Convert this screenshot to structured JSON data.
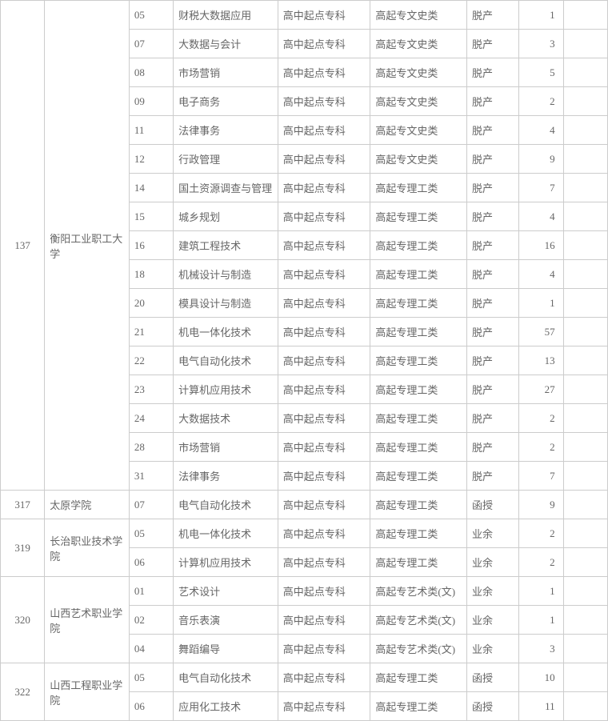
{
  "table": {
    "groups": [
      {
        "id": "137",
        "school": "衡阳工业职工大学",
        "rowspan": 17,
        "rows": [
          {
            "code": "05",
            "major": "财税大数据应用",
            "level": "高中起点专科",
            "category": "高起专文史类",
            "mode": "脱产",
            "num": "1"
          },
          {
            "code": "07",
            "major": "大数据与会计",
            "level": "高中起点专科",
            "category": "高起专文史类",
            "mode": "脱产",
            "num": "3"
          },
          {
            "code": "08",
            "major": "市场营销",
            "level": "高中起点专科",
            "category": "高起专文史类",
            "mode": "脱产",
            "num": "5"
          },
          {
            "code": "09",
            "major": "电子商务",
            "level": "高中起点专科",
            "category": "高起专文史类",
            "mode": "脱产",
            "num": "2"
          },
          {
            "code": "11",
            "major": "法律事务",
            "level": "高中起点专科",
            "category": "高起专文史类",
            "mode": "脱产",
            "num": "4"
          },
          {
            "code": "12",
            "major": "行政管理",
            "level": "高中起点专科",
            "category": "高起专文史类",
            "mode": "脱产",
            "num": "9"
          },
          {
            "code": "14",
            "major": "国土资源调查与管理",
            "level": "高中起点专科",
            "category": "高起专理工类",
            "mode": "脱产",
            "num": "7"
          },
          {
            "code": "15",
            "major": "城乡规划",
            "level": "高中起点专科",
            "category": "高起专理工类",
            "mode": "脱产",
            "num": "4"
          },
          {
            "code": "16",
            "major": "建筑工程技术",
            "level": "高中起点专科",
            "category": "高起专理工类",
            "mode": "脱产",
            "num": "16"
          },
          {
            "code": "18",
            "major": "机械设计与制造",
            "level": "高中起点专科",
            "category": "高起专理工类",
            "mode": "脱产",
            "num": "4"
          },
          {
            "code": "20",
            "major": "模具设计与制造",
            "level": "高中起点专科",
            "category": "高起专理工类",
            "mode": "脱产",
            "num": "1"
          },
          {
            "code": "21",
            "major": "机电一体化技术",
            "level": "高中起点专科",
            "category": "高起专理工类",
            "mode": "脱产",
            "num": "57"
          },
          {
            "code": "22",
            "major": "电气自动化技术",
            "level": "高中起点专科",
            "category": "高起专理工类",
            "mode": "脱产",
            "num": "13"
          },
          {
            "code": "23",
            "major": "计算机应用技术",
            "level": "高中起点专科",
            "category": "高起专理工类",
            "mode": "脱产",
            "num": "27"
          },
          {
            "code": "24",
            "major": "大数据技术",
            "level": "高中起点专科",
            "category": "高起专理工类",
            "mode": "脱产",
            "num": "2"
          },
          {
            "code": "28",
            "major": "市场营销",
            "level": "高中起点专科",
            "category": "高起专理工类",
            "mode": "脱产",
            "num": "2"
          },
          {
            "code": "31",
            "major": "法律事务",
            "level": "高中起点专科",
            "category": "高起专理工类",
            "mode": "脱产",
            "num": "7"
          }
        ]
      },
      {
        "id": "317",
        "school": "太原学院",
        "rowspan": 1,
        "rows": [
          {
            "code": "07",
            "major": "电气自动化技术",
            "level": "高中起点专科",
            "category": "高起专理工类",
            "mode": "函授",
            "num": "9"
          }
        ]
      },
      {
        "id": "319",
        "school": "长治职业技术学院",
        "rowspan": 2,
        "rows": [
          {
            "code": "05",
            "major": "机电一体化技术",
            "level": "高中起点专科",
            "category": "高起专理工类",
            "mode": "业余",
            "num": "2"
          },
          {
            "code": "06",
            "major": "计算机应用技术",
            "level": "高中起点专科",
            "category": "高起专理工类",
            "mode": "业余",
            "num": "2"
          }
        ]
      },
      {
        "id": "320",
        "school": "山西艺术职业学院",
        "rowspan": 3,
        "rows": [
          {
            "code": "01",
            "major": "艺术设计",
            "level": "高中起点专科",
            "category": "高起专艺术类(文)",
            "mode": "业余",
            "num": "1"
          },
          {
            "code": "02",
            "major": "音乐表演",
            "level": "高中起点专科",
            "category": "高起专艺术类(文)",
            "mode": "业余",
            "num": "1"
          },
          {
            "code": "04",
            "major": "舞蹈编导",
            "level": "高中起点专科",
            "category": "高起专艺术类(文)",
            "mode": "业余",
            "num": "3"
          }
        ]
      },
      {
        "id": "322",
        "school": "山西工程职业学院",
        "rowspan": 2,
        "rows": [
          {
            "code": "05",
            "major": "电气自动化技术",
            "level": "高中起点专科",
            "category": "高起专理工类",
            "mode": "函授",
            "num": "10"
          },
          {
            "code": "06",
            "major": "应用化工技术",
            "level": "高中起点专科",
            "category": "高起专理工类",
            "mode": "函授",
            "num": "11"
          }
        ]
      }
    ]
  }
}
